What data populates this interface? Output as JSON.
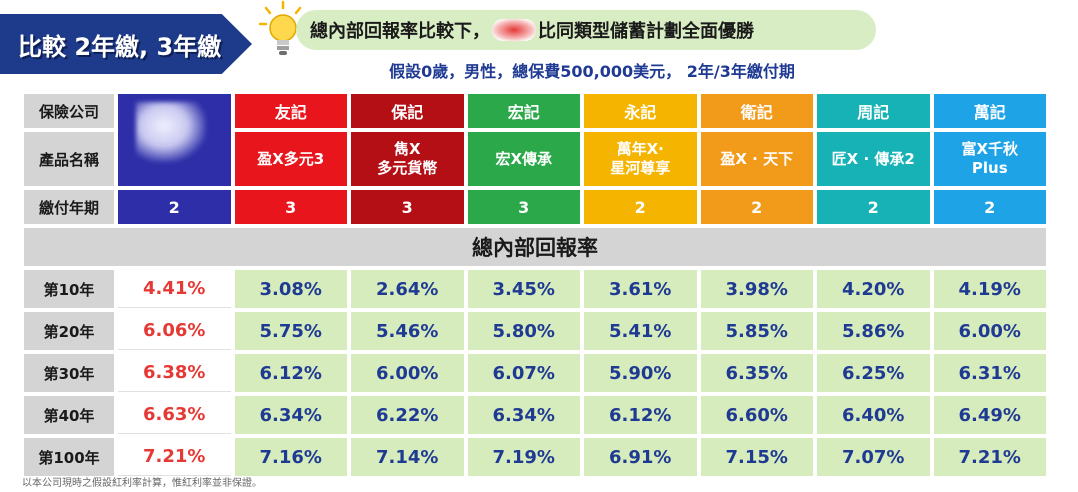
{
  "banner": {
    "title": "比較 2年繳, 3年繳"
  },
  "headline": {
    "before": "總內部回報率比較下，",
    "after": "比同類型儲蓄計劃全面優勝"
  },
  "subhead": "假設0歲，男性，總保費500,000美元， 2年/3年繳付期",
  "row_labels": {
    "company": "保險公司",
    "product": "產品名稱",
    "period": "繳付年期"
  },
  "section_title": "總內部回報率",
  "colors": {
    "own": "#2e2fa8",
    "c1": "#e8161c",
    "c2": "#b30f15",
    "c3": "#2aa84a",
    "c4": "#f5b400",
    "c5": "#f29a1a",
    "c6": "#16b2b5",
    "c7": "#1ea3e6"
  },
  "companies": [
    {
      "name": "",
      "product": "",
      "period": "2"
    },
    {
      "name": "友記",
      "product": "盈X多元3",
      "period": "3"
    },
    {
      "name": "保記",
      "product": "雋X\n多元貨幣",
      "period": "3"
    },
    {
      "name": "宏記",
      "product": "宏X傳承",
      "period": "3"
    },
    {
      "name": "永記",
      "product": "萬年X·\n星河尊享",
      "period": "2"
    },
    {
      "name": "衛記",
      "product": "盈X · 天下",
      "period": "2"
    },
    {
      "name": "周記",
      "product": "匠X · 傳承2",
      "period": "2"
    },
    {
      "name": "萬記",
      "product": "富X千秋\nPlus",
      "period": "2"
    }
  ],
  "years": [
    {
      "label": "第10年",
      "values": [
        "4.41%",
        "3.08%",
        "2.64%",
        "3.45%",
        "3.61%",
        "3.98%",
        "4.20%",
        "4.19%"
      ]
    },
    {
      "label": "第20年",
      "values": [
        "6.06%",
        "5.75%",
        "5.46%",
        "5.80%",
        "5.41%",
        "5.85%",
        "5.86%",
        "6.00%"
      ]
    },
    {
      "label": "第30年",
      "values": [
        "6.38%",
        "6.12%",
        "6.00%",
        "6.07%",
        "5.90%",
        "6.35%",
        "6.25%",
        "6.31%"
      ]
    },
    {
      "label": "第40年",
      "values": [
        "6.63%",
        "6.34%",
        "6.22%",
        "6.34%",
        "6.12%",
        "6.60%",
        "6.40%",
        "6.49%"
      ]
    },
    {
      "label": "第100年",
      "values": [
        "7.21%",
        "7.16%",
        "7.14%",
        "7.19%",
        "6.91%",
        "7.15%",
        "7.07%",
        "7.21%"
      ]
    }
  ],
  "footnote": "以本公司現時之假設紅利率計算，惟紅利率並非保證。"
}
